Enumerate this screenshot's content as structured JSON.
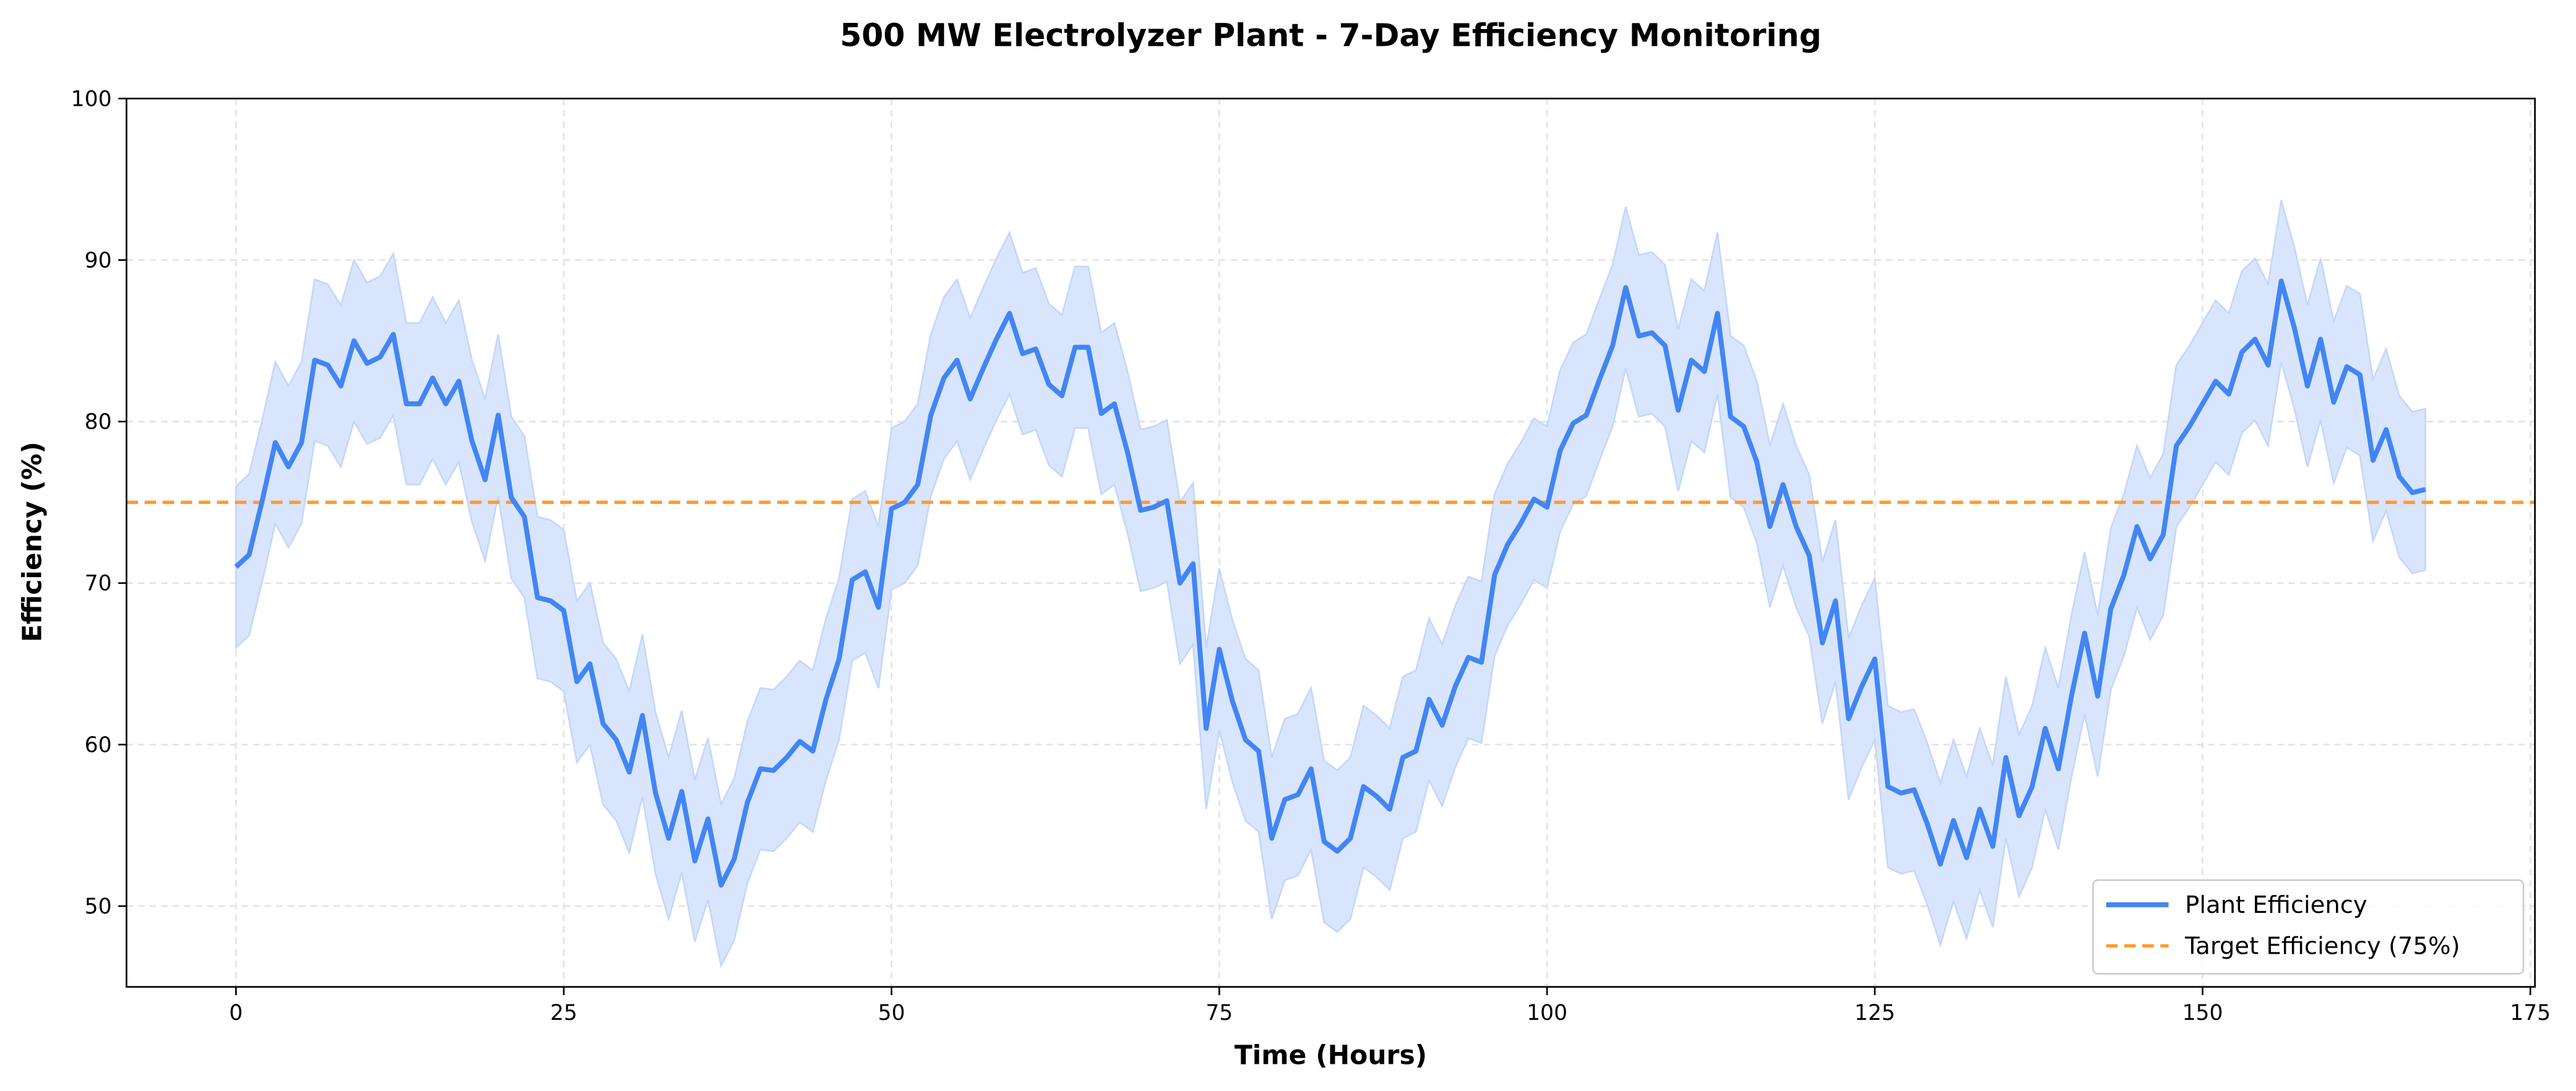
{
  "chart_data": {
    "type": "line",
    "title": "500 MW Electrolyzer Plant - 7-Day Efficiency Monitoring",
    "xlabel": "Time (Hours)",
    "ylabel": "Efficiency (%)",
    "xlim": [
      -8.35,
      175.35
    ],
    "ylim": [
      45,
      100
    ],
    "xticks": [
      0,
      25,
      50,
      75,
      100,
      125,
      150,
      175
    ],
    "yticks": [
      50,
      60,
      70,
      80,
      90,
      100
    ],
    "grid": true,
    "legend_position": "bottom-right",
    "x": [
      0,
      1,
      2,
      3,
      4,
      5,
      6,
      7,
      8,
      9,
      10,
      11,
      12,
      13,
      14,
      15,
      16,
      17,
      18,
      19,
      20,
      21,
      22,
      23,
      24,
      25,
      26,
      27,
      28,
      29,
      30,
      31,
      32,
      33,
      34,
      35,
      36,
      37,
      38,
      39,
      40,
      41,
      42,
      43,
      44,
      45,
      46,
      47,
      48,
      49,
      50,
      51,
      52,
      53,
      54,
      55,
      56,
      57,
      58,
      59,
      60,
      61,
      62,
      63,
      64,
      65,
      66,
      67,
      68,
      69,
      70,
      71,
      72,
      73,
      74,
      75,
      76,
      77,
      78,
      79,
      80,
      81,
      82,
      83,
      84,
      85,
      86,
      87,
      88,
      89,
      90,
      91,
      92,
      93,
      94,
      95,
      96,
      97,
      98,
      99,
      100,
      101,
      102,
      103,
      104,
      105,
      106,
      107,
      108,
      109,
      110,
      111,
      112,
      113,
      114,
      115,
      116,
      117,
      118,
      119,
      120,
      121,
      122,
      123,
      124,
      125,
      126,
      127,
      128,
      129,
      130,
      131,
      132,
      133,
      134,
      135,
      136,
      137,
      138,
      139,
      140,
      141,
      142,
      143,
      144,
      145,
      146,
      147,
      148,
      149,
      150,
      151,
      152,
      153,
      154,
      155,
      156,
      157,
      158,
      159,
      160,
      161,
      162,
      163,
      164,
      165,
      166,
      167
    ],
    "series": [
      {
        "name": "Plant Efficiency",
        "color": "#4285f4",
        "style": "solid",
        "band": {
          "lower_offset": -5,
          "upper_offset": 5,
          "color": "#d6e4fd"
        },
        "values": [
          71.0,
          71.75,
          75.1,
          78.7,
          77.2,
          78.7,
          83.8,
          83.5,
          82.2,
          85.0,
          83.6,
          84.0,
          85.4,
          81.1,
          81.1,
          82.7,
          81.1,
          82.5,
          78.8,
          76.4,
          80.4,
          75.3,
          74.1,
          69.1,
          68.9,
          68.3,
          63.9,
          65.0,
          61.3,
          60.3,
          58.3,
          61.8,
          57.0,
          54.2,
          57.1,
          52.8,
          55.4,
          51.3,
          52.9,
          56.4,
          58.5,
          58.4,
          59.2,
          60.2,
          59.6,
          62.8,
          65.3,
          70.2,
          70.7,
          68.5,
          74.6,
          75.0,
          76.1,
          80.4,
          82.7,
          83.8,
          81.4,
          83.3,
          85.1,
          86.7,
          84.2,
          84.5,
          82.3,
          81.6,
          84.6,
          84.6,
          80.5,
          81.1,
          78.1,
          74.5,
          74.7,
          75.1,
          70.0,
          71.2,
          61.0,
          65.9,
          62.7,
          60.3,
          59.6,
          54.2,
          56.6,
          56.9,
          58.5,
          54.0,
          53.4,
          54.2,
          57.4,
          56.8,
          56.0,
          59.2,
          59.6,
          62.8,
          61.2,
          63.6,
          65.4,
          65.1,
          70.5,
          72.4,
          73.7,
          75.2,
          74.7,
          78.2,
          79.9,
          80.4,
          82.6,
          84.7,
          88.3,
          85.3,
          85.5,
          84.7,
          80.7,
          83.8,
          83.1,
          86.7,
          80.3,
          79.7,
          77.5,
          73.5,
          76.1,
          73.5,
          71.7,
          66.3,
          68.9,
          61.6,
          63.6,
          65.3,
          57.4,
          57.0,
          57.2,
          55.1,
          52.6,
          55.3,
          53.0,
          56.0,
          53.7,
          59.2,
          55.6,
          57.4,
          61.0,
          58.5,
          63.0,
          66.9,
          63.0,
          68.4,
          70.5,
          73.5,
          71.5,
          73.0,
          78.5,
          79.7,
          81.1,
          82.5,
          81.7,
          84.3,
          85.1,
          83.5,
          88.7,
          85.8,
          82.2,
          85.1,
          81.2,
          83.4,
          82.9,
          77.6,
          79.5,
          76.6,
          75.6,
          75.8
        ]
      },
      {
        "name": "Target Efficiency (75%)",
        "color": "#ff9a2e",
        "style": "dashed",
        "constant": 75
      }
    ]
  }
}
